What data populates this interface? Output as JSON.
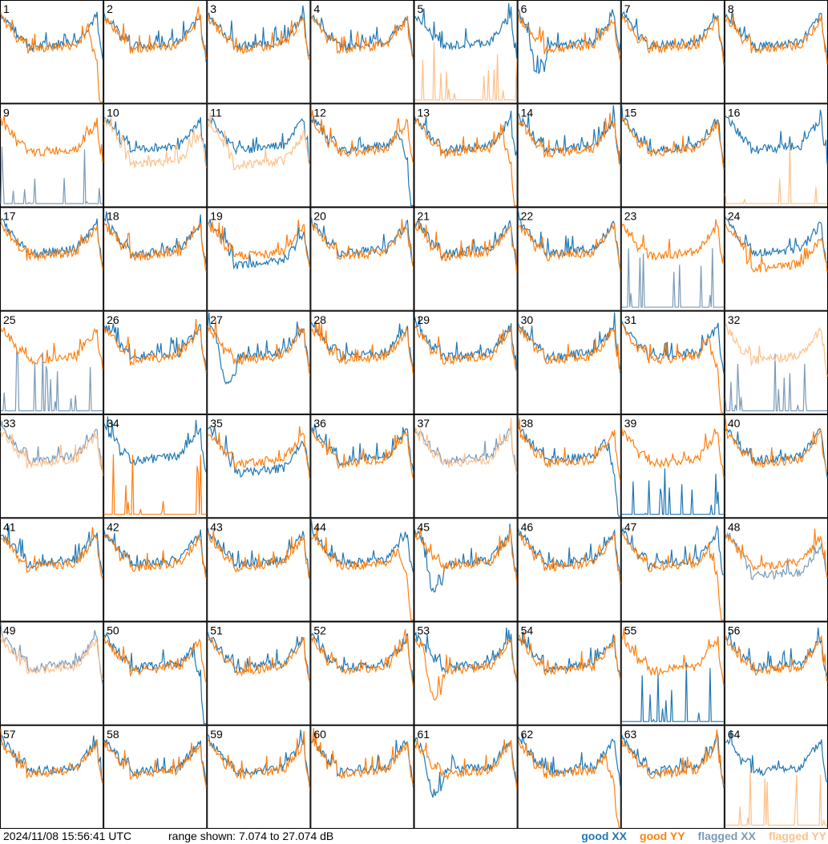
{
  "footer": {
    "timestamp": "2024/11/08 15:56:41 UTC",
    "range": "range shown: 7.074 to 27.074 dB"
  },
  "legend": [
    {
      "label": "good XX",
      "color": "#1f77b4"
    },
    {
      "label": "good YY",
      "color": "#ff7f0e"
    },
    {
      "label": "flagged XX",
      "color": "#7a9ab8"
    },
    {
      "label": "flagged YY",
      "color": "#ffc08a"
    }
  ],
  "chart_data": {
    "type": "line",
    "ylim": [
      7.074,
      27.074
    ],
    "grid": {
      "rows": 8,
      "cols": 8
    },
    "panels": [
      {
        "label": "1",
        "xx": "good",
        "yy": "good",
        "xx_shape": "normal",
        "yy_shape": "droop"
      },
      {
        "label": "2",
        "xx": "good",
        "yy": "good",
        "xx_shape": "normal",
        "yy_shape": "normal"
      },
      {
        "label": "3",
        "xx": "good",
        "yy": "good",
        "xx_shape": "normal",
        "yy_shape": "normal"
      },
      {
        "label": "4",
        "xx": "good",
        "yy": "good",
        "xx_shape": "normal",
        "yy_shape": "normal"
      },
      {
        "label": "5",
        "xx": "good",
        "yy": "flagged",
        "xx_shape": "normal",
        "yy_shape": "spikes"
      },
      {
        "label": "6",
        "xx": "good",
        "yy": "good",
        "xx_shape": "dip",
        "yy_shape": "normal"
      },
      {
        "label": "7",
        "xx": "good",
        "yy": "good",
        "xx_shape": "normal",
        "yy_shape": "normal"
      },
      {
        "label": "8",
        "xx": "good",
        "yy": "good",
        "xx_shape": "normal",
        "yy_shape": "normal"
      },
      {
        "label": "9",
        "xx": "flagged",
        "yy": "good",
        "xx_shape": "spikes",
        "yy_shape": "normal"
      },
      {
        "label": "10",
        "xx": "good",
        "yy": "flagged",
        "xx_shape": "normal",
        "yy_shape": "low"
      },
      {
        "label": "11",
        "xx": "good",
        "yy": "flagged",
        "xx_shape": "normal",
        "yy_shape": "low"
      },
      {
        "label": "12",
        "xx": "good",
        "yy": "good",
        "xx_shape": "droop",
        "yy_shape": "normal"
      },
      {
        "label": "13",
        "xx": "good",
        "yy": "good",
        "xx_shape": "normal",
        "yy_shape": "droop"
      },
      {
        "label": "14",
        "xx": "good",
        "yy": "good",
        "xx_shape": "normal",
        "yy_shape": "normal"
      },
      {
        "label": "15",
        "xx": "good",
        "yy": "good",
        "xx_shape": "normal",
        "yy_shape": "normal"
      },
      {
        "label": "16",
        "xx": "good",
        "yy": "flagged",
        "xx_shape": "normal",
        "yy_shape": "spikes"
      },
      {
        "label": "17",
        "xx": "good",
        "yy": "good",
        "xx_shape": "normal",
        "yy_shape": "normal"
      },
      {
        "label": "18",
        "xx": "good",
        "yy": "good",
        "xx_shape": "normal",
        "yy_shape": "normal"
      },
      {
        "label": "19",
        "xx": "good",
        "yy": "good",
        "xx_shape": "low",
        "yy_shape": "normal"
      },
      {
        "label": "20",
        "xx": "good",
        "yy": "good",
        "xx_shape": "normal",
        "yy_shape": "normal"
      },
      {
        "label": "21",
        "xx": "good",
        "yy": "good",
        "xx_shape": "normal",
        "yy_shape": "normal"
      },
      {
        "label": "22",
        "xx": "good",
        "yy": "good",
        "xx_shape": "normal",
        "yy_shape": "normal"
      },
      {
        "label": "23",
        "xx": "flagged",
        "yy": "good",
        "xx_shape": "spikes",
        "yy_shape": "normal"
      },
      {
        "label": "24",
        "xx": "good",
        "yy": "good",
        "xx_shape": "normal",
        "yy_shape": "low"
      },
      {
        "label": "25",
        "xx": "flagged",
        "yy": "good",
        "xx_shape": "spikes",
        "yy_shape": "normal"
      },
      {
        "label": "26",
        "xx": "good",
        "yy": "good",
        "xx_shape": "normal",
        "yy_shape": "normal"
      },
      {
        "label": "27",
        "xx": "good",
        "yy": "good",
        "xx_shape": "dip",
        "yy_shape": "normal"
      },
      {
        "label": "28",
        "xx": "good",
        "yy": "good",
        "xx_shape": "normal",
        "yy_shape": "normal"
      },
      {
        "label": "29",
        "xx": "good",
        "yy": "good",
        "xx_shape": "normal",
        "yy_shape": "normal"
      },
      {
        "label": "30",
        "xx": "good",
        "yy": "good",
        "xx_shape": "normal",
        "yy_shape": "normal"
      },
      {
        "label": "31",
        "xx": "good",
        "yy": "good",
        "xx_shape": "normal",
        "yy_shape": "droop"
      },
      {
        "label": "32",
        "xx": "flagged",
        "yy": "flagged",
        "xx_shape": "spikes",
        "yy_shape": "normal"
      },
      {
        "label": "33",
        "xx": "flagged",
        "yy": "flagged",
        "xx_shape": "normal",
        "yy_shape": "normal"
      },
      {
        "label": "34",
        "xx": "good",
        "yy": "good",
        "xx_shape": "normal",
        "yy_shape": "spikes"
      },
      {
        "label": "35",
        "xx": "good",
        "yy": "good",
        "xx_shape": "low",
        "yy_shape": "normal"
      },
      {
        "label": "36",
        "xx": "good",
        "yy": "good",
        "xx_shape": "normal",
        "yy_shape": "normal"
      },
      {
        "label": "37",
        "xx": "flagged",
        "yy": "flagged",
        "xx_shape": "normal",
        "yy_shape": "normal"
      },
      {
        "label": "38",
        "xx": "good",
        "yy": "good",
        "xx_shape": "droop",
        "yy_shape": "normal"
      },
      {
        "label": "39",
        "xx": "good",
        "yy": "good",
        "xx_shape": "spikes",
        "yy_shape": "normal"
      },
      {
        "label": "40",
        "xx": "good",
        "yy": "good",
        "xx_shape": "normal",
        "yy_shape": "normal"
      },
      {
        "label": "41",
        "xx": "good",
        "yy": "good",
        "xx_shape": "normal",
        "yy_shape": "normal"
      },
      {
        "label": "42",
        "xx": "good",
        "yy": "good",
        "xx_shape": "normal",
        "yy_shape": "normal"
      },
      {
        "label": "43",
        "xx": "good",
        "yy": "good",
        "xx_shape": "normal",
        "yy_shape": "normal"
      },
      {
        "label": "44",
        "xx": "good",
        "yy": "good",
        "xx_shape": "normal",
        "yy_shape": "droop"
      },
      {
        "label": "45",
        "xx": "good",
        "yy": "good",
        "xx_shape": "dip",
        "yy_shape": "normal"
      },
      {
        "label": "46",
        "xx": "good",
        "yy": "good",
        "xx_shape": "normal",
        "yy_shape": "normal"
      },
      {
        "label": "47",
        "xx": "good",
        "yy": "good",
        "xx_shape": "normal",
        "yy_shape": "droop"
      },
      {
        "label": "48",
        "xx": "flagged",
        "yy": "good",
        "xx_shape": "low",
        "yy_shape": "normal"
      },
      {
        "label": "49",
        "xx": "flagged",
        "yy": "flagged",
        "xx_shape": "normal",
        "yy_shape": "normal"
      },
      {
        "label": "50",
        "xx": "good",
        "yy": "good",
        "xx_shape": "droop",
        "yy_shape": "normal"
      },
      {
        "label": "51",
        "xx": "good",
        "yy": "good",
        "xx_shape": "normal",
        "yy_shape": "normal"
      },
      {
        "label": "52",
        "xx": "good",
        "yy": "good",
        "xx_shape": "normal",
        "yy_shape": "normal"
      },
      {
        "label": "53",
        "xx": "good",
        "yy": "good",
        "xx_shape": "normal",
        "yy_shape": "dip"
      },
      {
        "label": "54",
        "xx": "good",
        "yy": "good",
        "xx_shape": "normal",
        "yy_shape": "normal"
      },
      {
        "label": "55",
        "xx": "good",
        "yy": "good",
        "xx_shape": "spikes",
        "yy_shape": "normal"
      },
      {
        "label": "56",
        "xx": "good",
        "yy": "good",
        "xx_shape": "normal",
        "yy_shape": "normal"
      },
      {
        "label": "57",
        "xx": "good",
        "yy": "good",
        "xx_shape": "normal",
        "yy_shape": "normal"
      },
      {
        "label": "58",
        "xx": "good",
        "yy": "good",
        "xx_shape": "normal",
        "yy_shape": "normal"
      },
      {
        "label": "59",
        "xx": "good",
        "yy": "good",
        "xx_shape": "normal",
        "yy_shape": "normal"
      },
      {
        "label": "60",
        "xx": "good",
        "yy": "good",
        "xx_shape": "normal",
        "yy_shape": "normal"
      },
      {
        "label": "61",
        "xx": "good",
        "yy": "good",
        "xx_shape": "dip",
        "yy_shape": "normal"
      },
      {
        "label": "62",
        "xx": "good",
        "yy": "good",
        "xx_shape": "normal",
        "yy_shape": "droop"
      },
      {
        "label": "63",
        "xx": "good",
        "yy": "good",
        "xx_shape": "normal",
        "yy_shape": "normal"
      },
      {
        "label": "64",
        "xx": "good",
        "yy": "flagged",
        "xx_shape": "normal",
        "yy_shape": "spikes"
      }
    ]
  }
}
